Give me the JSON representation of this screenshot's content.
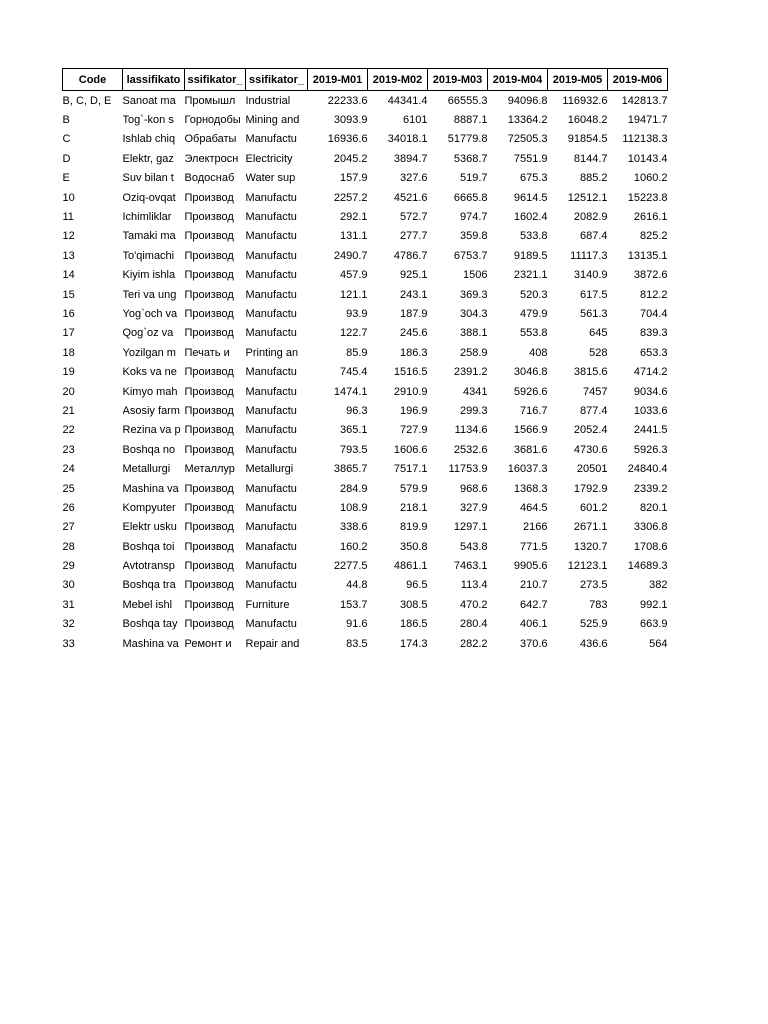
{
  "page": {
    "background": "#ffffff",
    "text_color": "#000000",
    "header_border_color": "#000000"
  },
  "table": {
    "headers": [
      "Code",
      "lassifikato",
      "ssifikator_",
      "ssifikator_",
      "2019-M01",
      "2019-M02",
      "2019-M03",
      "2019-M04",
      "2019-M05",
      "2019-M06"
    ],
    "rows": [
      {
        "code": "B, C, D, E",
        "uz": "Sanoat ma",
        "ru": "Промышл",
        "en": "Industrial",
        "values": [
          "22233.6",
          "44341.4",
          "66555.3",
          "94096.8",
          "116932.6",
          "142813.7"
        ]
      },
      {
        "code": "B",
        "uz": "Tog`-kon s",
        "ru": "Горнодобы",
        "en": "Mining and",
        "values": [
          "3093.9",
          "6101",
          "8887.1",
          "13364.2",
          "16048.2",
          "19471.7"
        ]
      },
      {
        "code": "C",
        "uz": "Ishlab chiq",
        "ru": "Обрабаты",
        "en": "Manufactu",
        "values": [
          "16936.6",
          "34018.1",
          "51779.8",
          "72505.3",
          "91854.5",
          "112138.3"
        ]
      },
      {
        "code": "D",
        "uz": "Elektr, gaz",
        "ru": "Электросн",
        "en": "Electricity",
        "values": [
          "2045.2",
          "3894.7",
          "5368.7",
          "7551.9",
          "8144.7",
          "10143.4"
        ]
      },
      {
        "code": "E",
        "uz": "Suv bilan t",
        "ru": "Водоснаб",
        "en": "Water sup",
        "values": [
          "157.9",
          "327.6",
          "519.7",
          "675.3",
          "885.2",
          "1060.2"
        ]
      },
      {
        "code": "10",
        "uz": "Oziq-ovqat",
        "ru": "Производ",
        "en": "Manufactu",
        "values": [
          "2257.2",
          "4521.6",
          "6665.8",
          "9614.5",
          "12512.1",
          "15223.8"
        ]
      },
      {
        "code": "11",
        "uz": "Ichimliklar",
        "ru": "Производ",
        "en": "Manufactu",
        "values": [
          "292.1",
          "572.7",
          "974.7",
          "1602.4",
          "2082.9",
          "2616.1"
        ]
      },
      {
        "code": "12",
        "uz": "Tamaki ma",
        "ru": "Производ",
        "en": "Manufactu",
        "values": [
          "131.1",
          "277.7",
          "359.8",
          "533.8",
          "687.4",
          "825.2"
        ]
      },
      {
        "code": "13",
        "uz": "To'qimachi",
        "ru": "Производ",
        "en": "Manufactu",
        "values": [
          "2490.7",
          "4786.7",
          "6753.7",
          "9189.5",
          "11117.3",
          "13135.1"
        ]
      },
      {
        "code": "14",
        "uz": "Kiyim ishla",
        "ru": "Производ",
        "en": "Manufactu",
        "values": [
          "457.9",
          "925.1",
          "1506",
          "2321.1",
          "3140.9",
          "3872.6"
        ]
      },
      {
        "code": "15",
        "uz": "Teri va ung",
        "ru": "Производ",
        "en": "Manufactu",
        "values": [
          "121.1",
          "243.1",
          "369.3",
          "520.3",
          "617.5",
          "812.2"
        ]
      },
      {
        "code": "16",
        "uz": "Yog`och va",
        "ru": "Производ",
        "en": "Manufactu",
        "values": [
          "93.9",
          "187.9",
          "304.3",
          "479.9",
          "561.3",
          "704.4"
        ]
      },
      {
        "code": "17",
        "uz": "Qog`oz va",
        "ru": "Производ",
        "en": "Manufactu",
        "values": [
          "122.7",
          "245.6",
          "388.1",
          "553.8",
          "645",
          "839.3"
        ]
      },
      {
        "code": "18",
        "uz": "Yozilgan m",
        "ru": "Печать и",
        "en": "Printing an",
        "values": [
          "85.9",
          "186.3",
          "258.9",
          "408",
          "528",
          "653.3"
        ]
      },
      {
        "code": "19",
        "uz": "Koks va ne",
        "ru": "Производ",
        "en": "Manufactu",
        "values": [
          "745.4",
          "1516.5",
          "2391.2",
          "3046.8",
          "3815.6",
          "4714.2"
        ]
      },
      {
        "code": "20",
        "uz": "Kimyo mah",
        "ru": "Производ",
        "en": "Manufactu",
        "values": [
          "1474.1",
          "2910.9",
          "4341",
          "5926.6",
          "7457",
          "9034.6"
        ]
      },
      {
        "code": "21",
        "uz": "Asosiy farm",
        "ru": "Производ",
        "en": "Manufactu",
        "values": [
          "96.3",
          "196.9",
          "299.3",
          "716.7",
          "877.4",
          "1033.6"
        ]
      },
      {
        "code": "22",
        "uz": "Rezina va p",
        "ru": "Производ",
        "en": "Manufactu",
        "values": [
          "365.1",
          "727.9",
          "1134.6",
          "1566.9",
          "2052.4",
          "2441.5"
        ]
      },
      {
        "code": "23",
        "uz": "Boshqa no",
        "ru": "Производ",
        "en": "Manufactu",
        "values": [
          "793.5",
          "1606.6",
          "2532.6",
          "3681.6",
          "4730.6",
          "5926.3"
        ]
      },
      {
        "code": "24",
        "uz": "Metallurgi",
        "ru": "Металлур",
        "en": "Metallurgi",
        "values": [
          "3865.7",
          "7517.1",
          "11753.9",
          "16037.3",
          "20501",
          "24840.4"
        ]
      },
      {
        "code": "25",
        "uz": "Mashina va",
        "ru": "Производ",
        "en": "Manufactu",
        "values": [
          "284.9",
          "579.9",
          "968.6",
          "1368.3",
          "1792.9",
          "2339.2"
        ]
      },
      {
        "code": "26",
        "uz": "Kompyuter",
        "ru": "Производ",
        "en": "Manufactu",
        "values": [
          "108.9",
          "218.1",
          "327.9",
          "464.5",
          "601.2",
          "820.1"
        ]
      },
      {
        "code": "27",
        "uz": "Elektr usku",
        "ru": "Производ",
        "en": "Manufactu",
        "values": [
          "338.6",
          "819.9",
          "1297.1",
          "2166",
          "2671.1",
          "3306.8"
        ]
      },
      {
        "code": "28",
        "uz": "Boshqa toi",
        "ru": "Производ",
        "en": "Manafactu",
        "values": [
          "160.2",
          "350.8",
          "543.8",
          "771.5",
          "1320.7",
          "1708.6"
        ]
      },
      {
        "code": "29",
        "uz": "Avtotransp",
        "ru": "Производ",
        "en": "Manufactu",
        "values": [
          "2277.5",
          "4861.1",
          "7463.1",
          "9905.6",
          "12123.1",
          "14689.3"
        ]
      },
      {
        "code": "30",
        "uz": "Boshqa tra",
        "ru": "Производ",
        "en": "Manufactu",
        "values": [
          "44.8",
          "96.5",
          "113.4",
          "210.7",
          "273.5",
          "382"
        ]
      },
      {
        "code": "31",
        "uz": "Mebel ishl",
        "ru": "Производ",
        "en": "Furniture",
        "values": [
          "153.7",
          "308.5",
          "470.2",
          "642.7",
          "783",
          "992.1"
        ]
      },
      {
        "code": "32",
        "uz": "Boshqa tay",
        "ru": "Производ",
        "en": "Manufactu",
        "values": [
          "91.6",
          "186.5",
          "280.4",
          "406.1",
          "525.9",
          "663.9"
        ]
      },
      {
        "code": "33",
        "uz": "Mashina va",
        "ru": "Ремонт и",
        "en": "Repair and",
        "values": [
          "83.5",
          "174.3",
          "282.2",
          "370.6",
          "436.6",
          "564"
        ]
      }
    ]
  }
}
